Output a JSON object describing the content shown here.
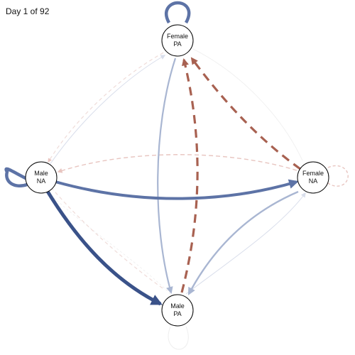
{
  "header": {
    "day_label": "Day 1 of 92"
  },
  "nodes": {
    "female_pa": {
      "line1": "Female",
      "line2": "PA"
    },
    "male_na": {
      "line1": "Male",
      "line2": "NA"
    },
    "female_na": {
      "line1": "Female",
      "line2": "NA"
    },
    "male_pa": {
      "line1": "Male",
      "line2": "PA"
    }
  },
  "colors": {
    "positive_strong": "#3a5289",
    "positive_mid": "#5d73a6",
    "positive_light": "#a9b6d2",
    "positive_faint": "#d9deeb",
    "negative_strong": "#a86151",
    "negative_light": "#e8c5c0",
    "negative_faint": "#efdcd9",
    "node_fill": "#ffffff",
    "node_stroke": "#000000"
  }
}
